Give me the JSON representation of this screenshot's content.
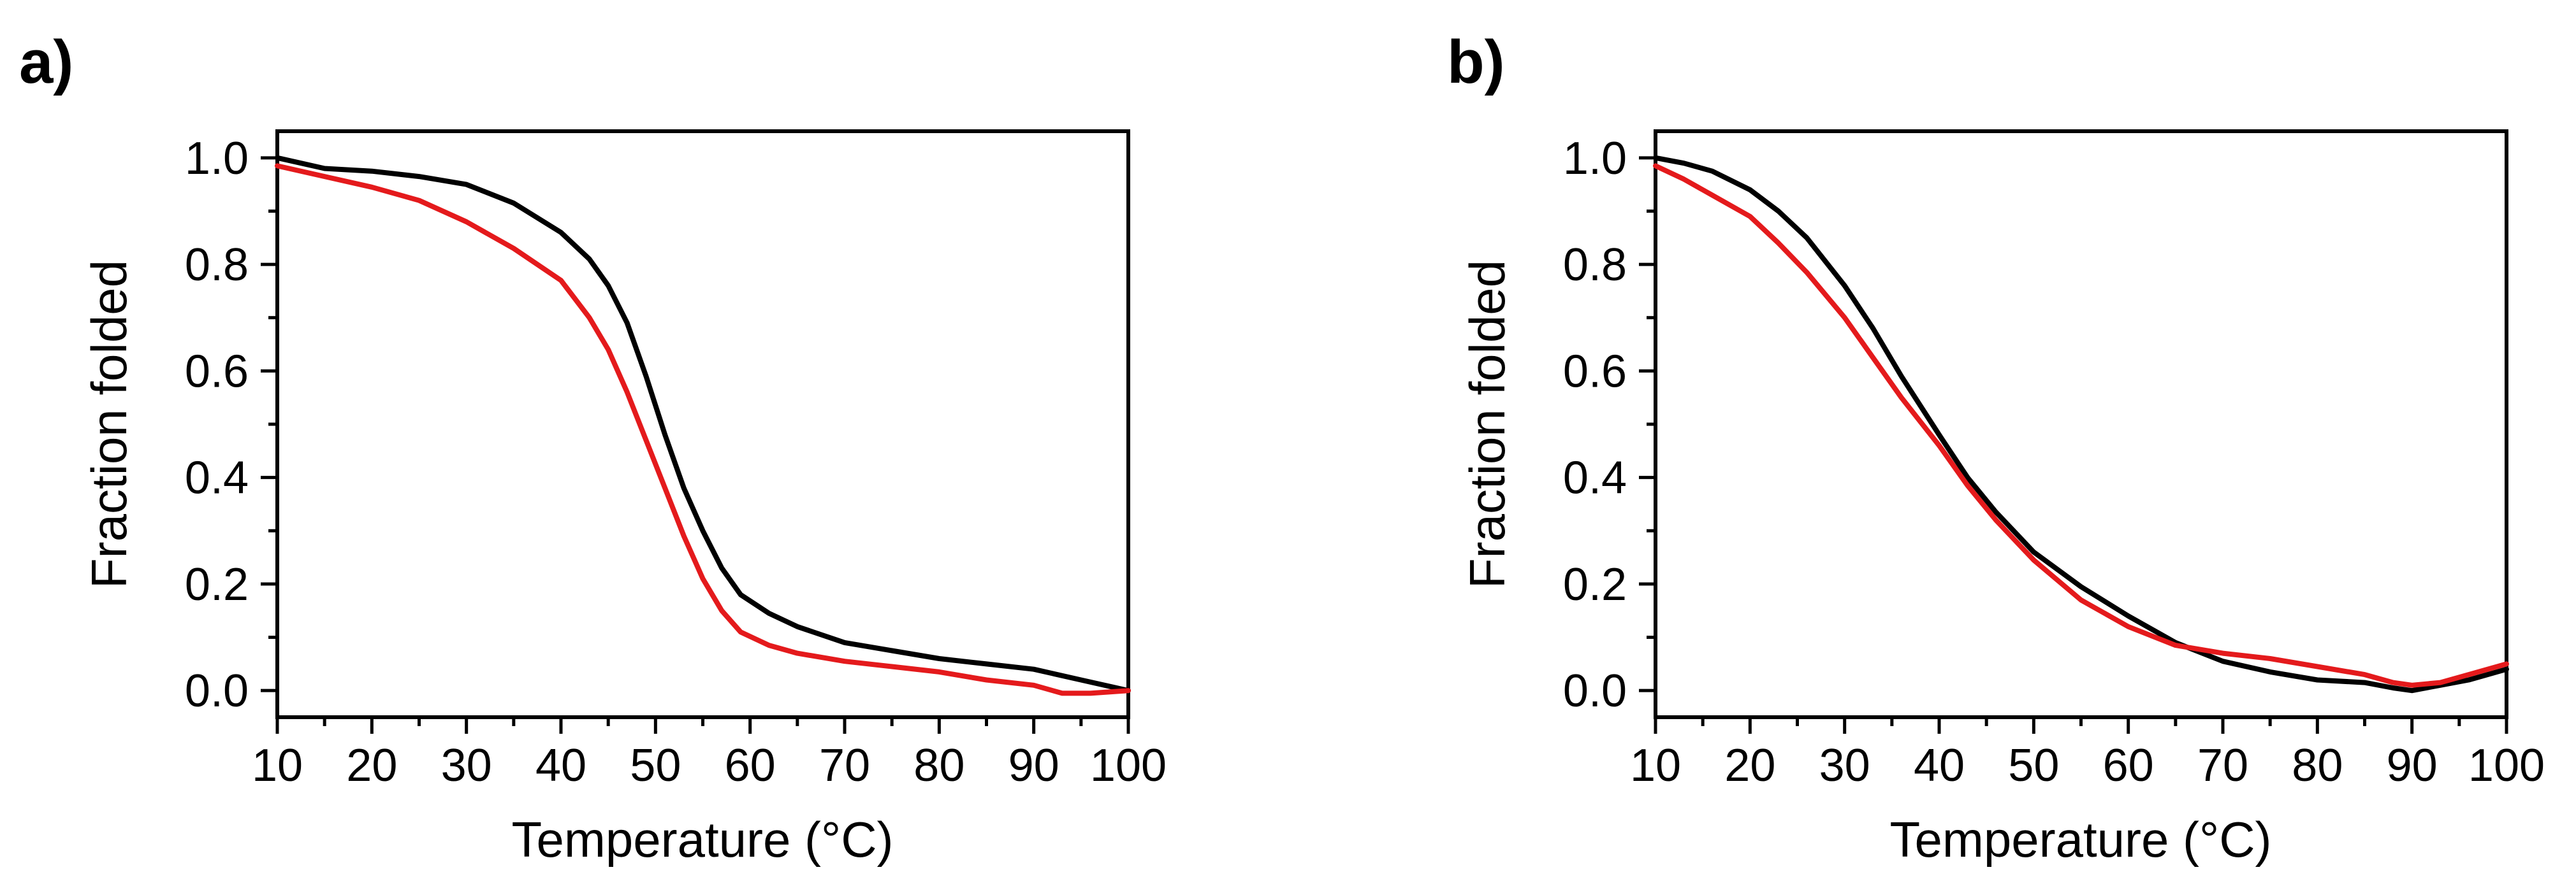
{
  "chart_data": [
    {
      "type": "line",
      "panel_label": "a)",
      "xlabel": "Temperature (°C)",
      "ylabel": "Fraction folded",
      "xlim": [
        10,
        100
      ],
      "ylim": [
        -0.05,
        1.05
      ],
      "xticks": [
        10,
        20,
        30,
        40,
        50,
        60,
        70,
        80,
        90,
        100
      ],
      "xtick_labels": [
        "10",
        "20",
        "30",
        "40",
        "50",
        "60",
        "70",
        "80",
        "90",
        "100"
      ],
      "yticks": [
        0.0,
        0.2,
        0.4,
        0.6,
        0.8,
        1.0
      ],
      "ytick_labels": [
        "0.0",
        "0.2",
        "0.4",
        "0.6",
        "0.8",
        "1.0"
      ],
      "grid": false,
      "series": [
        {
          "name": "black trace",
          "color": "#000000",
          "x": [
            10,
            15,
            20,
            25,
            30,
            35,
            40,
            43,
            45,
            47,
            49,
            51,
            53,
            55,
            57,
            59,
            62,
            65,
            70,
            75,
            80,
            85,
            90,
            95,
            100
          ],
          "y": [
            1.0,
            0.98,
            0.975,
            0.965,
            0.95,
            0.915,
            0.86,
            0.81,
            0.76,
            0.69,
            0.59,
            0.48,
            0.38,
            0.3,
            0.23,
            0.18,
            0.145,
            0.12,
            0.09,
            0.075,
            0.06,
            0.05,
            0.04,
            0.02,
            0.0
          ]
        },
        {
          "name": "red trace",
          "color": "#e41a1c",
          "x": [
            10,
            15,
            20,
            25,
            30,
            35,
            40,
            43,
            45,
            47,
            49,
            51,
            53,
            55,
            57,
            59,
            62,
            65,
            70,
            75,
            80,
            85,
            90,
            93,
            96,
            100
          ],
          "y": [
            0.985,
            0.965,
            0.945,
            0.92,
            0.88,
            0.83,
            0.77,
            0.7,
            0.64,
            0.56,
            0.47,
            0.38,
            0.29,
            0.21,
            0.15,
            0.11,
            0.085,
            0.07,
            0.055,
            0.045,
            0.035,
            0.02,
            0.01,
            -0.005,
            -0.005,
            0.0
          ]
        }
      ]
    },
    {
      "type": "line",
      "panel_label": "b)",
      "xlabel": "Temperature (°C)",
      "ylabel": "Fraction folded",
      "xlim": [
        10,
        100
      ],
      "ylim": [
        -0.05,
        1.05
      ],
      "xticks": [
        10,
        20,
        30,
        40,
        50,
        60,
        70,
        80,
        90,
        100
      ],
      "xtick_labels": [
        "10",
        "20",
        "30",
        "40",
        "50",
        "60",
        "70",
        "80",
        "90",
        "100"
      ],
      "yticks": [
        0.0,
        0.2,
        0.4,
        0.6,
        0.8,
        1.0
      ],
      "ytick_labels": [
        "0.0",
        "0.2",
        "0.4",
        "0.6",
        "0.8",
        "1.0"
      ],
      "grid": false,
      "series": [
        {
          "name": "black trace",
          "color": "#000000",
          "x": [
            10,
            13,
            16,
            20,
            23,
            26,
            30,
            33,
            36,
            40,
            43,
            46,
            50,
            55,
            60,
            65,
            70,
            75,
            80,
            85,
            88,
            90,
            93,
            96,
            100
          ],
          "y": [
            1.0,
            0.99,
            0.975,
            0.94,
            0.9,
            0.85,
            0.76,
            0.68,
            0.59,
            0.48,
            0.4,
            0.335,
            0.26,
            0.195,
            0.14,
            0.09,
            0.055,
            0.035,
            0.02,
            0.015,
            0.005,
            0.0,
            0.01,
            0.02,
            0.04
          ]
        },
        {
          "name": "red trace",
          "color": "#e41a1c",
          "x": [
            10,
            13,
            16,
            20,
            23,
            26,
            30,
            33,
            36,
            40,
            43,
            46,
            50,
            55,
            60,
            65,
            70,
            75,
            80,
            85,
            88,
            90,
            93,
            96,
            100
          ],
          "y": [
            0.985,
            0.96,
            0.93,
            0.89,
            0.84,
            0.785,
            0.7,
            0.625,
            0.55,
            0.46,
            0.385,
            0.32,
            0.245,
            0.17,
            0.12,
            0.085,
            0.07,
            0.06,
            0.045,
            0.03,
            0.015,
            0.01,
            0.015,
            0.03,
            0.05
          ]
        }
      ]
    }
  ]
}
